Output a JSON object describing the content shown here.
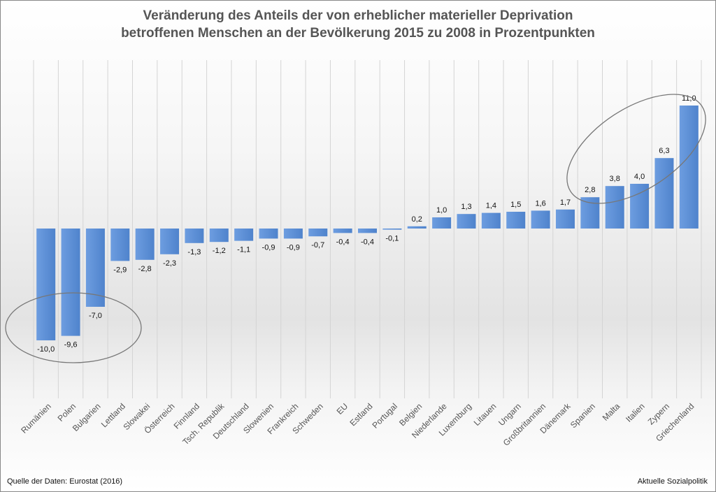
{
  "chart_data": {
    "type": "bar",
    "title": "Veränderung des Anteils der von erheblicher materieller Deprivation betroffenen Menschen an der Bevölkerung 2015 zu 2008 in Prozentpunkten",
    "title_lines": [
      "Veränderung des Anteils der von erheblicher materieller Deprivation",
      "betroffenen Menschen an der Bevölkerung 2015 zu 2008 in Prozentpunkten"
    ],
    "categories": [
      "Rumänien",
      "Polen",
      "Bulgarien",
      "Lettland",
      "Slowakei",
      "Österreich",
      "Finnland",
      "Tsch. Republik",
      "Deutschland",
      "Slowenien",
      "Frankreich",
      "Schweden",
      "EU",
      "Estland",
      "Portugal",
      "Belgien",
      "Niederlande",
      "Luxemburg",
      "Litauen",
      "Ungarn",
      "Großbritannien",
      "Dänemark",
      "Spanien",
      "Malta",
      "Italien",
      "Zypern",
      "Griechenland"
    ],
    "values": [
      -10.0,
      -9.6,
      -7.0,
      -2.9,
      -2.8,
      -2.3,
      -1.3,
      -1.2,
      -1.1,
      -0.9,
      -0.9,
      -0.7,
      -0.4,
      -0.4,
      -0.1,
      0.2,
      1.0,
      1.3,
      1.4,
      1.5,
      1.6,
      1.7,
      2.8,
      3.8,
      4.0,
      6.3,
      11.0
    ],
    "data_labels": [
      "-10,0",
      "-9,6",
      "-7,0",
      "-2,9",
      "-2,8",
      "-2,3",
      "-1,3",
      "-1,2",
      "-1,1",
      "-0,9",
      "-0,9",
      "-0,7",
      "-0,4",
      "-0,4",
      "-0,1",
      "0,2",
      "1,0",
      "1,3",
      "1,4",
      "1,5",
      "1,6",
      "1,7",
      "2,8",
      "3,8",
      "4,0",
      "6,3",
      "11,0"
    ],
    "ylim": [
      -15,
      15
    ],
    "grid": "vertical",
    "legend": "none",
    "bar_color": "#5b8fd6",
    "highlight_ellipses": [
      "Rumänien-Bulgarien",
      "Spanien-Griechenland"
    ]
  },
  "footer": {
    "source": "Quelle der Daten: Eurostat (2016)",
    "publisher": "Aktuelle Sozialpolitik"
  }
}
